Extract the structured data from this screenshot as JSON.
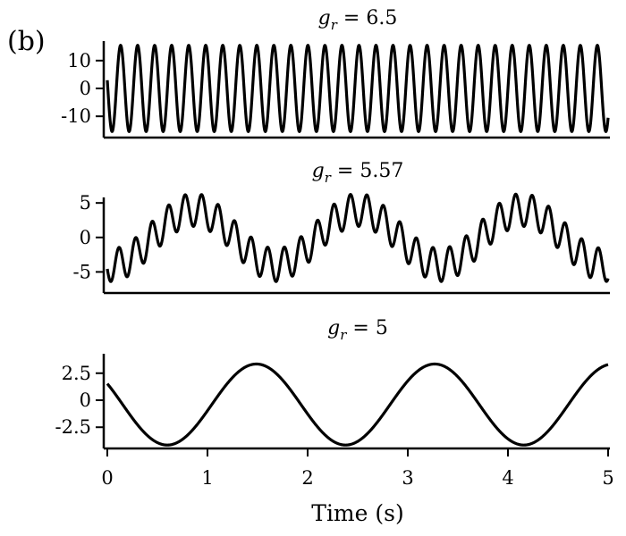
{
  "figure": {
    "panel_label": "(b)"
  },
  "chart_data": [
    {
      "type": "line",
      "title": "g_r = 6.5",
      "title_symbol": "g",
      "title_subscript": "r",
      "title_value": " = 6.5",
      "xlim": [
        0,
        5
      ],
      "ylim": [
        -17,
        17
      ],
      "yticks": [
        {
          "value": 10,
          "label": "10"
        },
        {
          "value": 0,
          "label": "0"
        },
        {
          "value": -10,
          "label": "-10"
        }
      ],
      "show_xticks": false,
      "signal": {
        "period_s": 0.17,
        "amplitude": 15.5,
        "phase": 2.95,
        "offset": 0
      },
      "line_color": "#000000",
      "grid": false
    },
    {
      "type": "line",
      "title": "g_r = 5.57",
      "title_symbol": "g",
      "title_subscript": "r",
      "title_value": " = 5.57",
      "xlim": [
        0,
        5
      ],
      "ylim": [
        -7.8,
        5.8
      ],
      "yticks": [
        {
          "value": 5,
          "label": "5"
        },
        {
          "value": 0,
          "label": "0"
        },
        {
          "value": -5,
          "label": "-5"
        }
      ],
      "show_xticks": false,
      "signal": {
        "slow_period_s": 1.64,
        "slow_amplitude": 4.0,
        "slow_phase": 4.55,
        "fast_period_s": 0.165,
        "fast_amplitude": 2.4,
        "fast_phase": 3.4
      },
      "line_color": "#000000",
      "grid": false
    },
    {
      "type": "line",
      "title": "g_r = 5",
      "title_symbol": "g",
      "title_subscript": "r",
      "title_value": " = 5",
      "xlim": [
        0,
        5
      ],
      "ylim": [
        -4.3,
        4.3
      ],
      "yticks": [
        {
          "value": 2.5,
          "label": "2.5"
        },
        {
          "value": 0,
          "label": "0"
        },
        {
          "value": -2.5,
          "label": "-2.5"
        }
      ],
      "show_xticks": true,
      "xticks": [
        {
          "value": 0,
          "label": "0"
        },
        {
          "value": 1,
          "label": "1"
        },
        {
          "value": 2,
          "label": "2"
        },
        {
          "value": 3,
          "label": "3"
        },
        {
          "value": 4,
          "label": "4"
        },
        {
          "value": 5,
          "label": "5"
        }
      ],
      "xlabel": "Time (s)",
      "signal": {
        "period_s": 1.78,
        "amplitude": 3.75,
        "phase": 2.6,
        "offset": -0.4
      },
      "line_color": "#000000",
      "grid": false
    }
  ]
}
